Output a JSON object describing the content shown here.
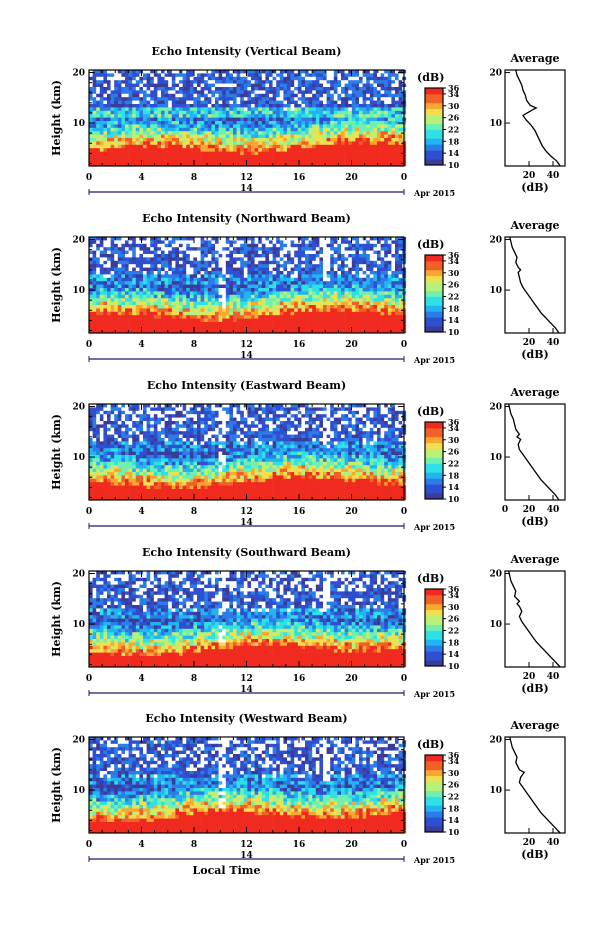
{
  "colors": {
    "colormap": [
      "#3b3b9a",
      "#2f4fd0",
      "#2a7de6",
      "#22b4f0",
      "#2fe0e6",
      "#6ef0b0",
      "#b8f078",
      "#f0e050",
      "#f8a830",
      "#f06028",
      "#f02a1e"
    ],
    "missing": "#ffffff",
    "profile_line": "#000000"
  },
  "common": {
    "ylabel": "Height (km)",
    "yticks": [
      "10",
      "20"
    ],
    "xticks": [
      "0",
      "4",
      "8",
      "12",
      "16",
      "20",
      "0"
    ],
    "date_day": "14",
    "date_month_year": "Apr 2015",
    "colorbar_title": "(dB)",
    "colorbar_ticks": [
      "10",
      "14",
      "18",
      "22",
      "26",
      "30",
      "34",
      "36"
    ],
    "avg_title": "Average",
    "avg_xlabel": "(dB)",
    "xlabel_bottom": "Local Time"
  },
  "chart_data": [
    {
      "type": "heatmap",
      "title": "Echo Intensity (Vertical Beam)",
      "x_range": [
        0,
        24
      ],
      "y_range": [
        1.5,
        20.5
      ],
      "z_range": [
        10,
        36
      ],
      "avg_xticks": [
        "20",
        "40"
      ],
      "avg_xlim": [
        0,
        50
      ],
      "avg_profile": [
        [
          1.5,
          46
        ],
        [
          2.5,
          43
        ],
        [
          3.5,
          38
        ],
        [
          4.5,
          34
        ],
        [
          5.5,
          31
        ],
        [
          6.5,
          29
        ],
        [
          7.5,
          27
        ],
        [
          8.5,
          25
        ],
        [
          9.5,
          22
        ],
        [
          10.5,
          18
        ],
        [
          11.5,
          15
        ],
        [
          12.5,
          22
        ],
        [
          13,
          26
        ],
        [
          13.5,
          21
        ],
        [
          14.5,
          18
        ],
        [
          15.5,
          17
        ],
        [
          16.5,
          15
        ],
        [
          17.5,
          14
        ],
        [
          18.5,
          12
        ],
        [
          19.5,
          10
        ],
        [
          20.5,
          9
        ]
      ]
    },
    {
      "type": "heatmap",
      "title": "Echo Intensity (Northward Beam)",
      "x_range": [
        0,
        24
      ],
      "y_range": [
        1.5,
        20.5
      ],
      "z_range": [
        10,
        36
      ],
      "avg_xticks": [
        "20",
        "40"
      ],
      "avg_xlim": [
        0,
        50
      ],
      "avg_profile": [
        [
          1.5,
          45
        ],
        [
          2.5,
          42
        ],
        [
          3.5,
          38
        ],
        [
          4.5,
          34
        ],
        [
          5.5,
          30
        ],
        [
          6.5,
          27
        ],
        [
          7.5,
          24
        ],
        [
          8.5,
          21
        ],
        [
          9.5,
          18
        ],
        [
          10.5,
          15
        ],
        [
          11.5,
          13
        ],
        [
          12.5,
          12
        ],
        [
          13.5,
          11
        ],
        [
          14,
          13
        ],
        [
          14.5,
          11
        ],
        [
          15.5,
          9
        ],
        [
          16.5,
          10
        ],
        [
          17.5,
          8
        ],
        [
          18.5,
          6
        ],
        [
          19.5,
          5
        ],
        [
          20.5,
          4
        ]
      ]
    },
    {
      "type": "heatmap",
      "title": "Echo Intensity (Eastward Beam)",
      "x_range": [
        0,
        24
      ],
      "y_range": [
        1.5,
        20.5
      ],
      "z_range": [
        10,
        36
      ],
      "avg_xticks": [
        "0",
        "20",
        "40"
      ],
      "avg_xlim": [
        0,
        50
      ],
      "avg_profile": [
        [
          1.5,
          45
        ],
        [
          2.5,
          42
        ],
        [
          3.5,
          38
        ],
        [
          4.5,
          34
        ],
        [
          5.5,
          30
        ],
        [
          6.5,
          27
        ],
        [
          7.5,
          24
        ],
        [
          8.5,
          21
        ],
        [
          9.5,
          18
        ],
        [
          10.5,
          15
        ],
        [
          11.5,
          12
        ],
        [
          12.5,
          11
        ],
        [
          13.5,
          13
        ],
        [
          14,
          10
        ],
        [
          14.5,
          12
        ],
        [
          15.5,
          9
        ],
        [
          16.5,
          8
        ],
        [
          17.5,
          7
        ],
        [
          18.5,
          5
        ],
        [
          19.5,
          4
        ],
        [
          20.5,
          3
        ]
      ]
    },
    {
      "type": "heatmap",
      "title": "Echo Intensity (Southward Beam)",
      "x_range": [
        0,
        24
      ],
      "y_range": [
        1.5,
        20.5
      ],
      "z_range": [
        10,
        36
      ],
      "avg_xticks": [
        "20",
        "40"
      ],
      "avg_xlim": [
        0,
        50
      ],
      "avg_profile": [
        [
          1.5,
          46
        ],
        [
          2.5,
          42
        ],
        [
          3.5,
          38
        ],
        [
          4.5,
          34
        ],
        [
          5.5,
          30
        ],
        [
          6.5,
          26
        ],
        [
          7.5,
          23
        ],
        [
          8.5,
          20
        ],
        [
          9.5,
          17
        ],
        [
          10.5,
          14
        ],
        [
          11.5,
          12
        ],
        [
          12.5,
          14
        ],
        [
          13.5,
          12
        ],
        [
          14,
          10
        ],
        [
          14.5,
          12
        ],
        [
          15.5,
          8
        ],
        [
          16.5,
          9
        ],
        [
          17.5,
          7
        ],
        [
          18.5,
          5
        ],
        [
          19.5,
          4
        ],
        [
          20.5,
          3
        ]
      ]
    },
    {
      "type": "heatmap",
      "title": "Echo Intensity (Westward Beam)",
      "x_range": [
        0,
        24
      ],
      "y_range": [
        1.5,
        20.5
      ],
      "z_range": [
        10,
        36
      ],
      "avg_xticks": [
        "20",
        "40"
      ],
      "avg_xlim": [
        0,
        50
      ],
      "avg_profile": [
        [
          1.5,
          46
        ],
        [
          2.5,
          42
        ],
        [
          3.5,
          38
        ],
        [
          4.5,
          34
        ],
        [
          5.5,
          30
        ],
        [
          6.5,
          27
        ],
        [
          7.5,
          24
        ],
        [
          8.5,
          21
        ],
        [
          9.5,
          18
        ],
        [
          10.5,
          15
        ],
        [
          11.5,
          12
        ],
        [
          12.5,
          13
        ],
        [
          13.5,
          16
        ],
        [
          14,
          12
        ],
        [
          14.5,
          11
        ],
        [
          15.5,
          9
        ],
        [
          16.5,
          10
        ],
        [
          17.5,
          8
        ],
        [
          18.5,
          6
        ],
        [
          19.5,
          5
        ],
        [
          20.5,
          4
        ]
      ]
    }
  ]
}
